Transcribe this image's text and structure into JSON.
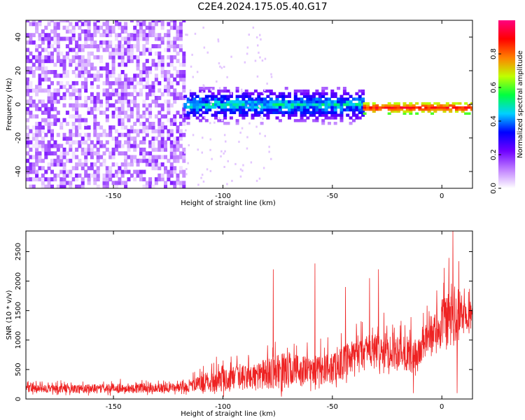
{
  "title": "C2E4.2024.175.05.40.G17",
  "chart_data": [
    {
      "type": "heatmap",
      "xlabel": "Height of straight line (km)",
      "ylabel": "Frequency (Hz)",
      "xlim": [
        -190,
        14
      ],
      "ylim": [
        -50,
        50
      ],
      "x_ticks": [
        -150,
        -100,
        -50,
        0
      ],
      "y_ticks": [
        -40,
        -20,
        0,
        20,
        40
      ],
      "x_tick_labels": [
        "-150",
        "-100",
        "-50",
        "0"
      ],
      "y_tick_labels": [
        "-40",
        "-20",
        "0",
        "20",
        "40"
      ],
      "colorbar": {
        "label": "Normalized spectral amplitude",
        "range": [
          0,
          1
        ],
        "ticks": [
          0.0,
          0.2,
          0.4,
          0.6,
          0.8
        ],
        "tick_labels": [
          "0.0",
          "0.2",
          "0.4",
          "0.6",
          "0.8"
        ],
        "colormap": [
          "#ffffff",
          "#c080ff",
          "#7000ff",
          "#0000ff",
          "#00d0ff",
          "#00ff40",
          "#c0ff00",
          "#ff8000",
          "#ff0000",
          "#ff0080"
        ]
      },
      "regions": [
        {
          "x": [
            -190,
            -118
          ],
          "freq_spread": [
            -50,
            50
          ],
          "amplitude": [
            0.02,
            0.2
          ]
        },
        {
          "x": [
            -118,
            -36
          ],
          "freq_center": 0,
          "freq_spread": [
            -12,
            10
          ],
          "amplitude": [
            0.1,
            0.55
          ]
        },
        {
          "x": [
            -36,
            14
          ],
          "freq_center": -2,
          "freq_spread": [
            -4,
            3
          ],
          "amplitude": [
            0.6,
            0.95
          ]
        }
      ]
    },
    {
      "type": "line",
      "xlabel": "Height of straight line (km)",
      "ylabel": "SNR (10 * v/v)",
      "xlim": [
        -190,
        14
      ],
      "ylim": [
        0,
        2850
      ],
      "x_ticks": [
        -150,
        -100,
        -50,
        0
      ],
      "y_ticks": [
        0,
        500,
        1000,
        1500,
        2000,
        2500
      ],
      "x_tick_labels": [
        "-150",
        "-100",
        "-50",
        "0"
      ],
      "y_tick_labels": [
        "0",
        "500",
        "1000",
        "1500",
        "2000",
        "2500"
      ],
      "series": [
        {
          "color": "#ee2222",
          "envelope": [
            {
              "x": -190,
              "base": 150,
              "peak": 350
            },
            {
              "x": -170,
              "base": 150,
              "peak": 350
            },
            {
              "x": -140,
              "base": 160,
              "peak": 400
            },
            {
              "x": -118,
              "base": 170,
              "peak": 380
            },
            {
              "x": -105,
              "base": 250,
              "peak": 800
            },
            {
              "x": -90,
              "base": 300,
              "peak": 900
            },
            {
              "x": -80,
              "base": 350,
              "peak": 1100
            },
            {
              "x": -70,
              "base": 400,
              "peak": 1300
            },
            {
              "x": -60,
              "base": 400,
              "peak": 1100
            },
            {
              "x": -50,
              "base": 450,
              "peak": 1200
            },
            {
              "x": -35,
              "base": 700,
              "peak": 1600
            },
            {
              "x": -20,
              "base": 750,
              "peak": 1600
            },
            {
              "x": -12,
              "base": 600,
              "peak": 1500
            },
            {
              "x": -5,
              "base": 1050,
              "peak": 1800
            },
            {
              "x": 5,
              "base": 1200,
              "peak": 2850
            },
            {
              "x": 14,
              "base": 1450,
              "peak": 1900
            }
          ],
          "spikes": [
            {
              "x": -77,
              "value": 2200
            },
            {
              "x": -58,
              "value": 2300
            },
            {
              "x": -44,
              "value": 1900
            },
            {
              "x": -33,
              "value": 2050
            },
            {
              "x": -29,
              "value": 2200
            },
            {
              "x": -13,
              "value": 100
            },
            {
              "x": 5,
              "value": 2850
            },
            {
              "x": 7,
              "value": 100
            }
          ]
        }
      ]
    }
  ]
}
